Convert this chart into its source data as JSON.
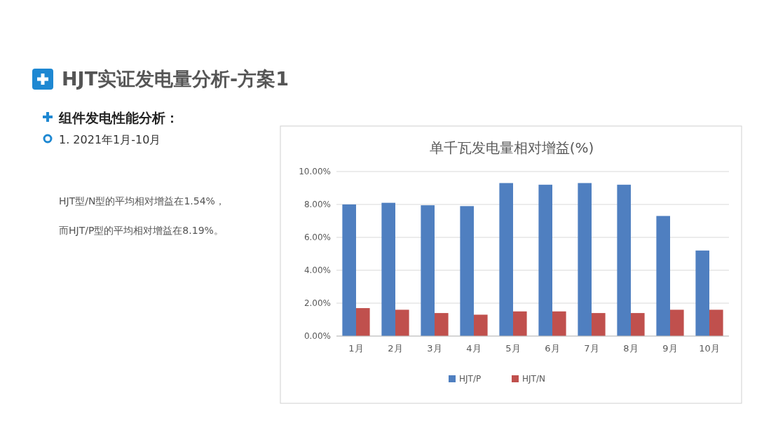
{
  "chart_data": {
    "type": "bar",
    "title": "单千瓦发电量相对增益(%)",
    "categories": [
      "1月",
      "2月",
      "3月",
      "4月",
      "5月",
      "6月",
      "7月",
      "8月",
      "9月",
      "10月"
    ],
    "series": [
      {
        "name": "HJT/P",
        "color": "#4f7fc0",
        "values": [
          8.0,
          8.1,
          7.95,
          7.9,
          9.3,
          9.2,
          9.3,
          9.2,
          7.3,
          5.2
        ]
      },
      {
        "name": "HJT/N",
        "color": "#c0504d",
        "values": [
          1.7,
          1.6,
          1.4,
          1.3,
          1.5,
          1.5,
          1.4,
          1.4,
          1.6,
          1.6
        ]
      }
    ],
    "ylim": [
      0,
      10
    ],
    "yticks": [
      {
        "value": 0,
        "label": "0.00%"
      },
      {
        "value": 2,
        "label": "2.00%"
      },
      {
        "value": 4,
        "label": "4.00%"
      },
      {
        "value": 6,
        "label": "6.00%"
      },
      {
        "value": 8,
        "label": "8.00%"
      },
      {
        "value": 10,
        "label": "10.00%"
      }
    ],
    "grid": "y",
    "legend": "bottom",
    "annotations": [
      "HJT实证发电量分析-方案1",
      "组件发电性能分析：",
      "1. 2021年1月-10月",
      "HJT型/N型的平均相对增益在1.54%，",
      "而HJT/P型的平均相对增益在8.19%。"
    ]
  }
}
